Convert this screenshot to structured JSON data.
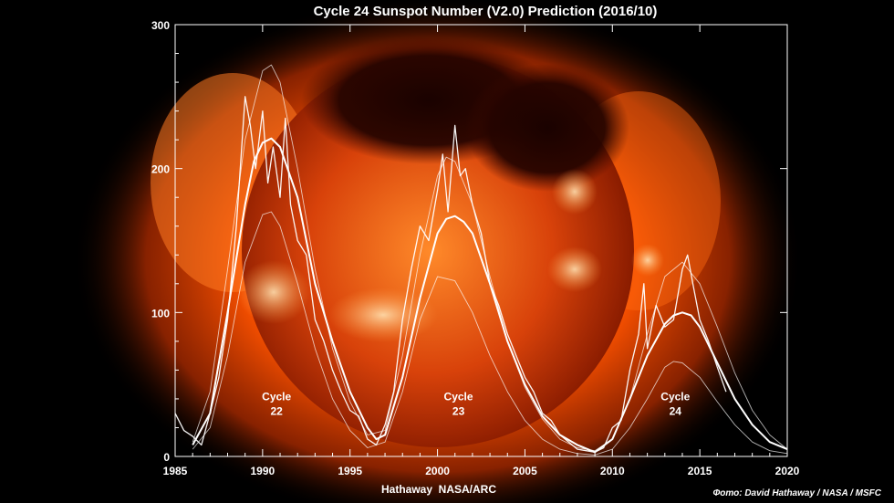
{
  "chart_data": {
    "type": "line",
    "title": "Cycle 24 Sunspot Number (V2.0) Prediction (2016/10)",
    "xlabel": "Hathaway  NASA/ARC",
    "ylabel": "",
    "xlim": [
      1985,
      2020
    ],
    "ylim": [
      0,
      300
    ],
    "x_ticks": [
      1985,
      1990,
      1995,
      2000,
      2005,
      2010,
      2015,
      2020
    ],
    "y_ticks": [
      0,
      100,
      200,
      300
    ],
    "grid": false,
    "background": "x-ray image of the Sun",
    "cycle_labels": [
      {
        "line1": "Cycle",
        "line2": "22",
        "x": 1990.8,
        "y": 34
      },
      {
        "line1": "Cycle",
        "line2": "23",
        "x": 2001.2,
        "y": 34
      },
      {
        "line1": "Cycle",
        "line2": "24",
        "x": 2013.6,
        "y": 34
      }
    ],
    "series": [
      {
        "kind": "monthly",
        "x": [
          1985.0,
          1985.5,
          1986.0,
          1986.5,
          1987.0,
          1987.5,
          1988.0,
          1988.5,
          1989.0,
          1989.3,
          1989.6,
          1990.0,
          1990.3,
          1990.6,
          1991.0,
          1991.3,
          1991.6,
          1992.0,
          1992.5,
          1993.0,
          1993.5,
          1994.0,
          1994.5,
          1995.0,
          1995.5,
          1996.0,
          1996.5,
          1997.0,
          1997.5,
          1998.0,
          1998.5,
          1999.0,
          1999.5,
          2000.0,
          2000.3,
          2000.6,
          2001.0,
          2001.3,
          2001.6,
          2002.0,
          2002.5,
          2003.0,
          2003.5,
          2004.0,
          2004.5,
          2005.0,
          2005.5,
          2006.0,
          2006.5,
          2007.0,
          2007.5,
          2008.0,
          2008.5,
          2009.0,
          2009.5,
          2010.0,
          2010.5,
          2011.0,
          2011.5,
          2011.8,
          2012.0,
          2012.5,
          2013.0,
          2013.5,
          2014.0,
          2014.3,
          2014.6,
          2015.0,
          2015.5,
          2016.0,
          2016.5
        ],
        "y": [
          30,
          18,
          14,
          8,
          30,
          55,
          95,
          160,
          250,
          230,
          200,
          240,
          190,
          215,
          180,
          235,
          175,
          150,
          140,
          95,
          80,
          60,
          45,
          32,
          28,
          12,
          8,
          22,
          45,
          95,
          130,
          160,
          150,
          185,
          210,
          170,
          230,
          195,
          200,
          175,
          155,
          120,
          105,
          85,
          70,
          55,
          45,
          30,
          25,
          15,
          10,
          5,
          4,
          3,
          6,
          20,
          25,
          60,
          85,
          120,
          75,
          105,
          90,
          95,
          130,
          140,
          120,
          95,
          80,
          62,
          45
        ]
      },
      {
        "kind": "smoothed",
        "x": [
          1986.0,
          1987.0,
          1988.0,
          1989.0,
          1989.5,
          1990.0,
          1990.5,
          1991.0,
          1992.0,
          1993.0,
          1994.0,
          1995.0,
          1996.0,
          1996.5,
          1997.0,
          1998.0,
          1999.0,
          2000.0,
          2000.5,
          2001.0,
          2001.5,
          2002.0,
          2003.0,
          2004.0,
          2005.0,
          2006.0,
          2007.0,
          2008.0,
          2009.0,
          2010.0,
          2011.0,
          2012.0,
          2013.0,
          2013.5,
          2014.0,
          2014.5,
          2015.0,
          2016.0,
          2017.0,
          2018.0,
          2019.0,
          2020.0
        ],
        "y": [
          8,
          30,
          100,
          175,
          205,
          218,
          221,
          215,
          180,
          120,
          80,
          45,
          20,
          12,
          15,
          55,
          110,
          155,
          165,
          167,
          163,
          155,
          120,
          80,
          50,
          28,
          15,
          8,
          3,
          12,
          40,
          70,
          92,
          98,
          100,
          98,
          90,
          65,
          40,
          22,
          10,
          5
        ]
      },
      {
        "kind": "prediction-high",
        "x": [
          1986.0,
          1987.0,
          1988.0,
          1989.0,
          1990.0,
          1990.5,
          1991.0,
          1992.0,
          1993.0,
          1994.0,
          1995.0,
          1996.0,
          1997.0,
          1998.0,
          1999.0,
          2000.0,
          2000.5,
          2001.0,
          2002.0,
          2003.0,
          2004.0,
          2005.0,
          2006.0,
          2007.0,
          2008.0,
          2009.0,
          2010.0,
          2011.0,
          2012.0,
          2013.0,
          2014.0,
          2015.0,
          2016.0,
          2017.0,
          2018.0,
          2019.0,
          2020.0
        ],
        "y": [
          10,
          45,
          130,
          220,
          268,
          272,
          260,
          200,
          130,
          75,
          38,
          15,
          18,
          70,
          140,
          195,
          208,
          205,
          175,
          125,
          80,
          48,
          26,
          12,
          6,
          4,
          12,
          40,
          85,
          125,
          135,
          120,
          90,
          58,
          32,
          15,
          5
        ]
      },
      {
        "kind": "prediction-low",
        "x": [
          1986.0,
          1987.0,
          1988.0,
          1989.0,
          1990.0,
          1990.5,
          1991.0,
          1992.0,
          1993.0,
          1994.0,
          1995.0,
          1996.0,
          1997.0,
          1998.0,
          1999.0,
          2000.0,
          2001.0,
          2002.0,
          2003.0,
          2004.0,
          2005.0,
          2006.0,
          2007.0,
          2008.0,
          2009.0,
          2010.0,
          2011.0,
          2012.0,
          2013.0,
          2013.5,
          2014.0,
          2015.0,
          2016.0,
          2017.0,
          2018.0,
          2019.0,
          2020.0
        ],
        "y": [
          5,
          20,
          70,
          135,
          168,
          170,
          160,
          120,
          75,
          40,
          18,
          6,
          10,
          45,
          95,
          125,
          122,
          100,
          70,
          45,
          25,
          12,
          5,
          2,
          1,
          5,
          20,
          40,
          62,
          66,
          65,
          55,
          38,
          22,
          10,
          4,
          2
        ]
      }
    ]
  },
  "footer": {
    "credit": "Фото: David Hathaway / NASA / MSFC"
  }
}
